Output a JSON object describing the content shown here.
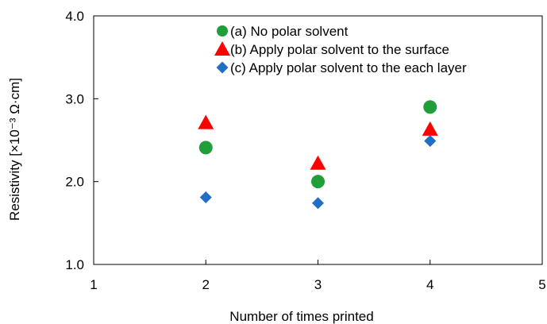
{
  "chart_data": {
    "type": "scatter",
    "xlabel": "Number of times printed",
    "ylabel": "Resistivity [×10⁻³ Ω·cm]",
    "xlim": [
      1,
      5
    ],
    "ylim": [
      1.0,
      4.0
    ],
    "x_ticks": [
      "1",
      "2",
      "3",
      "4",
      "5"
    ],
    "y_ticks": [
      "1.0",
      "2.0",
      "3.0",
      "4.0"
    ],
    "grid": false,
    "legend_position": "top-right",
    "series": [
      {
        "name": "(a) No polar solvent",
        "marker": "circle",
        "color": "#1f9e3a",
        "points": [
          {
            "x": 2,
            "y": 2.41
          },
          {
            "x": 3,
            "y": 2.0
          },
          {
            "x": 4,
            "y": 2.9
          }
        ]
      },
      {
        "name": "(b) Apply polar solvent to the surface",
        "marker": "triangle",
        "color": "#ff0000",
        "points": [
          {
            "x": 2,
            "y": 2.71
          },
          {
            "x": 3,
            "y": 2.22
          },
          {
            "x": 4,
            "y": 2.63
          }
        ]
      },
      {
        "name": "(c) Apply polar solvent to the each layer",
        "marker": "diamond",
        "color": "#1f6fc4",
        "points": [
          {
            "x": 2,
            "y": 1.81
          },
          {
            "x": 3,
            "y": 1.74
          },
          {
            "x": 4,
            "y": 2.49
          }
        ]
      }
    ]
  }
}
